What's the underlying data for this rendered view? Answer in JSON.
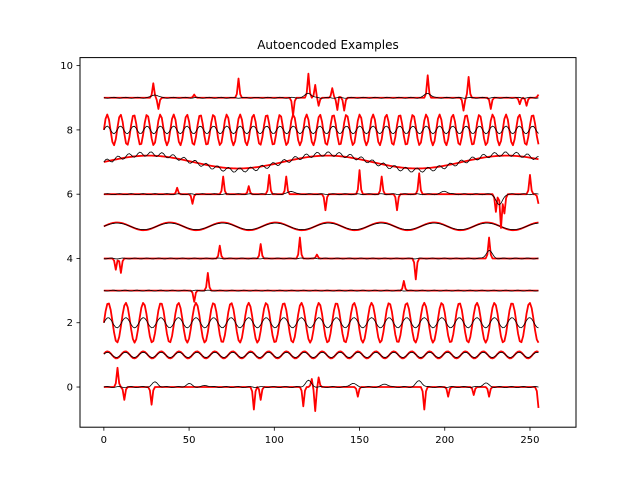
{
  "chart_data": {
    "type": "line",
    "title": "Autoencoded Examples",
    "xlabel": "",
    "ylabel": "",
    "xlim": [
      -14,
      277
    ],
    "ylim": [
      -1.25,
      10.25
    ],
    "x_ticks": [
      0,
      50,
      100,
      150,
      200,
      250
    ],
    "y_ticks": [
      0,
      2,
      4,
      6,
      8,
      10
    ],
    "grid": false,
    "legend": "none",
    "n_points": 256,
    "colors": {
      "original": "#ff0000",
      "reconstruction": "#000000"
    },
    "rows": [
      {
        "offset": 0,
        "kind": "spikes",
        "spikes": [
          [
            8,
            0.6
          ],
          [
            12,
            -0.4
          ],
          [
            28,
            -0.55
          ],
          [
            88,
            -0.7
          ],
          [
            92,
            -0.4
          ],
          [
            117,
            -0.6
          ],
          [
            122,
            0.25
          ],
          [
            124,
            -0.75
          ],
          [
            126,
            0.3
          ],
          [
            149,
            -0.3
          ],
          [
            188,
            -0.7
          ],
          [
            202,
            -0.3
          ],
          [
            217,
            -0.25
          ],
          [
            226,
            -0.3
          ],
          [
            255,
            -0.65
          ]
        ],
        "recon_bumps": [
          [
            30,
            0.15
          ],
          [
            50,
            0.1
          ],
          [
            60,
            0.05
          ],
          [
            120,
            0.2
          ],
          [
            146,
            0.12
          ],
          [
            165,
            0.1
          ],
          [
            185,
            0.2
          ],
          [
            224,
            0.12
          ]
        ]
      },
      {
        "offset": 1,
        "kind": "sine",
        "period": 10.5,
        "amp": 0.11,
        "phase": 0.3,
        "recon_amp": 0.08
      },
      {
        "offset": 2,
        "kind": "sine",
        "period": 10.3,
        "amp": 0.62,
        "phase": 0.0,
        "recon_amp": 0.16
      },
      {
        "offset": 3,
        "kind": "spikes",
        "spikes": [
          [
            53,
            -0.35
          ],
          [
            61,
            0.55
          ],
          [
            176,
            0.3
          ]
        ],
        "recon_bumps": []
      },
      {
        "offset": 4,
        "kind": "spikes",
        "spikes": [
          [
            7,
            -0.35
          ],
          [
            10,
            -0.45
          ],
          [
            68,
            0.4
          ],
          [
            92,
            0.45
          ],
          [
            115,
            0.65
          ],
          [
            125,
            0.12
          ],
          [
            183,
            -0.65
          ],
          [
            226,
            0.65
          ]
        ],
        "recon_bumps": [
          [
            226,
            0.25
          ]
        ]
      },
      {
        "offset": 5,
        "kind": "sine",
        "period": 31,
        "amp": 0.12,
        "phase": 0.0,
        "recon_amp": 0.1
      },
      {
        "offset": 6,
        "kind": "spikes",
        "spikes": [
          [
            43,
            0.2
          ],
          [
            52,
            -0.3
          ],
          [
            70,
            0.55
          ],
          [
            85,
            0.25
          ],
          [
            97,
            0.6
          ],
          [
            107,
            0.55
          ],
          [
            130,
            -0.5
          ],
          [
            150,
            0.75
          ],
          [
            163,
            0.55
          ],
          [
            172,
            -0.5
          ],
          [
            185,
            0.65
          ],
          [
            230,
            -0.55
          ],
          [
            233,
            -1.05
          ],
          [
            235,
            -0.6
          ],
          [
            250,
            0.6
          ],
          [
            255,
            -0.3
          ]
        ],
        "recon_bumps": [
          [
            110,
            0.1
          ],
          [
            200,
            0.1
          ],
          [
            232,
            -0.35
          ]
        ]
      },
      {
        "offset": 7,
        "kind": "sine",
        "period": 105,
        "amp": 0.2,
        "phase": 0.0,
        "recon_amp": 0.25,
        "recon_ripple": 0.07
      },
      {
        "offset": 8,
        "kind": "sine",
        "period": 7.8,
        "amp": 0.48,
        "phase": 0.0,
        "recon_amp": 0.12
      },
      {
        "offset": 9,
        "kind": "spikes",
        "spikes": [
          [
            29,
            0.45
          ],
          [
            32,
            -0.35
          ],
          [
            53,
            0.1
          ],
          [
            79,
            0.6
          ],
          [
            111,
            -0.55
          ],
          [
            120,
            0.75
          ],
          [
            124,
            0.4
          ],
          [
            126,
            -0.25
          ],
          [
            134,
            0.3
          ],
          [
            137,
            -0.4
          ],
          [
            138,
            0.1
          ],
          [
            141,
            -0.4
          ],
          [
            190,
            0.7
          ],
          [
            211,
            -0.4
          ],
          [
            214,
            0.65
          ],
          [
            227,
            -0.35
          ],
          [
            244,
            -0.2
          ],
          [
            248,
            -0.25
          ],
          [
            255,
            0.1
          ]
        ],
        "recon_bumps": [
          [
            30,
            0.1
          ],
          [
            120,
            0.15
          ],
          [
            190,
            0.15
          ]
        ]
      }
    ]
  }
}
